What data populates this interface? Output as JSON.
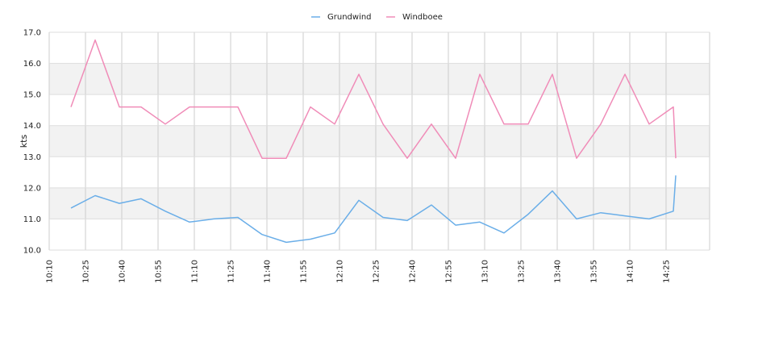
{
  "chart_data": {
    "type": "line",
    "ylabel": "kts",
    "xlabel": "",
    "ylim": [
      10.0,
      17.0
    ],
    "xlim_minutes": [
      610,
      883
    ],
    "y_ticks": [
      "10.0",
      "11.0",
      "12.0",
      "13.0",
      "14.0",
      "15.0",
      "16.0",
      "17.0"
    ],
    "x_ticks": [
      {
        "label": "10:10",
        "t": "10:10"
      },
      {
        "label": "10:25",
        "t": "10:25"
      },
      {
        "label": "10:40",
        "t": "10:40"
      },
      {
        "label": "10:55",
        "t": "10:55"
      },
      {
        "label": "11:10",
        "t": "11:10"
      },
      {
        "label": "11:25",
        "t": "11:25"
      },
      {
        "label": "11:40",
        "t": "11:40"
      },
      {
        "label": "11:55",
        "t": "11:55"
      },
      {
        "label": "12:10",
        "t": "12:10"
      },
      {
        "label": "12:25",
        "t": "12:25"
      },
      {
        "label": "12:40",
        "t": "12:40"
      },
      {
        "label": "12:55",
        "t": "12:55"
      },
      {
        "label": "13:10",
        "t": "13:10"
      },
      {
        "label": "13:25",
        "t": "13:25"
      },
      {
        "label": "13:40",
        "t": "13:40"
      },
      {
        "label": "13:55",
        "t": "13:55"
      },
      {
        "label": "14:10",
        "t": "14:10"
      },
      {
        "label": "14:25",
        "t": "14:25"
      }
    ],
    "grid": true,
    "legend_position": "top-center",
    "x": [
      "10:19",
      "10:29",
      "10:39",
      "10:48",
      "10:58",
      "11:08",
      "11:18",
      "11:28",
      "11:38",
      "11:48",
      "11:58",
      "12:08",
      "12:18",
      "12:28",
      "12:38",
      "12:48",
      "12:58",
      "13:08",
      "13:18",
      "13:28",
      "13:38",
      "13:48",
      "13:58",
      "14:08",
      "14:18",
      "14:28",
      "14:29"
    ],
    "series": [
      {
        "name": "Grundwind",
        "color": "#6aaee8",
        "values": [
          11.35,
          11.75,
          11.5,
          11.65,
          11.25,
          10.9,
          11.0,
          11.05,
          10.5,
          10.25,
          10.35,
          10.55,
          11.6,
          11.05,
          10.95,
          11.45,
          10.8,
          10.9,
          10.55,
          11.15,
          11.9,
          11.0,
          11.2,
          11.1,
          11.0,
          11.25,
          12.4
        ]
      },
      {
        "name": "Windboee",
        "color": "#f08cb8",
        "values": [
          14.6,
          16.75,
          14.6,
          14.6,
          14.05,
          14.6,
          14.6,
          14.6,
          12.95,
          12.95,
          14.6,
          14.05,
          15.65,
          14.05,
          12.95,
          14.05,
          12.95,
          15.65,
          14.05,
          14.05,
          15.65,
          12.95,
          14.05,
          15.65,
          14.05,
          14.6,
          12.95
        ]
      }
    ]
  }
}
